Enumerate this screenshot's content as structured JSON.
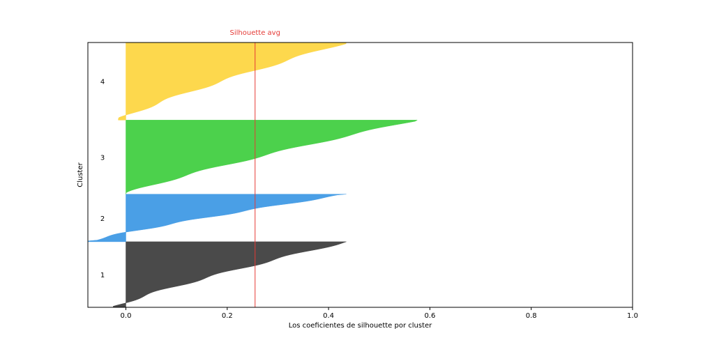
{
  "chart_data": {
    "type": "area",
    "title": "",
    "xlabel": "Los coeficientes de silhouette por cluster",
    "ylabel": "Cluster",
    "xlim": [
      -0.075,
      1.0
    ],
    "xticks": [
      "0.0",
      "0.2",
      "0.4",
      "0.6",
      "0.8",
      "1.0"
    ],
    "xtick_values": [
      0.0,
      0.2,
      0.4,
      0.6,
      0.8,
      1.0
    ],
    "grid": false,
    "silhouette_avg": {
      "label": "Silhouette avg",
      "value": 0.255,
      "color": "#e53935"
    },
    "clusters": [
      {
        "label": "1",
        "color": "#4a4a4a",
        "size": 131,
        "min": -0.025,
        "max": 0.435
      },
      {
        "label": "2",
        "color": "#4a9fe6",
        "size": 95,
        "min": -0.075,
        "max": 0.435
      },
      {
        "label": "3",
        "color": "#4cd14c",
        "size": 148,
        "min": 0.0,
        "max": 0.575
      },
      {
        "label": "4",
        "color": "#fdd84d",
        "size": 155,
        "min": -0.015,
        "max": 0.435
      }
    ]
  }
}
